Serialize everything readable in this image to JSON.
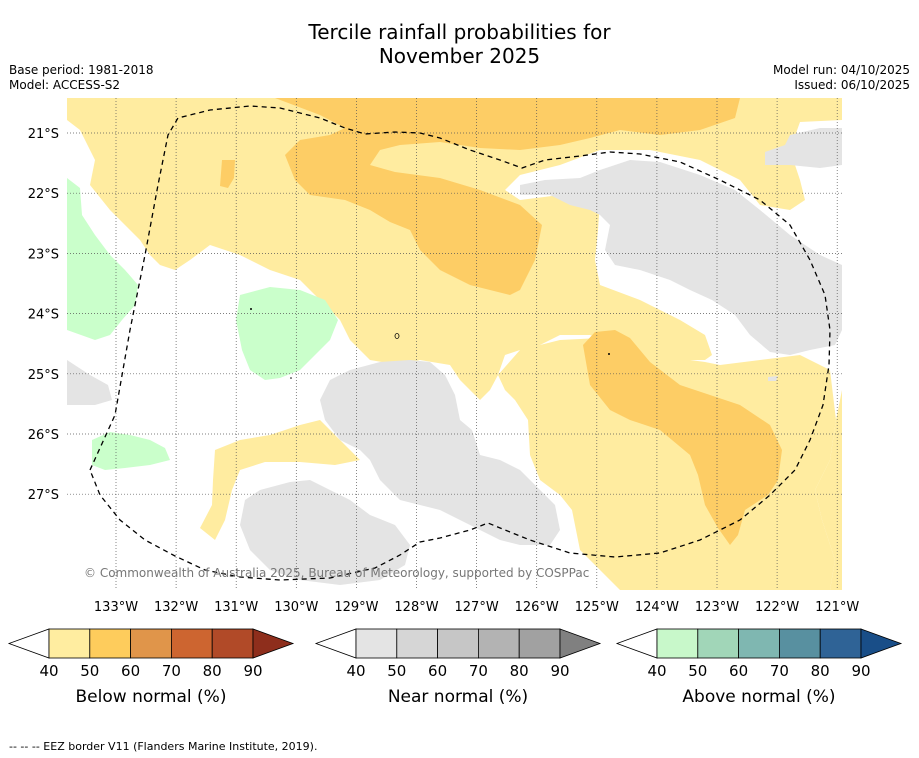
{
  "title": {
    "line1": "Tercile rainfall probabilities for",
    "line2": "November 2025"
  },
  "meta": {
    "base_period": "Base period: 1981-2018",
    "model": "Model: ACCESS-S2",
    "model_run": "Model run: 04/10/2025",
    "issued": "Issued: 06/10/2025"
  },
  "map": {
    "copyright": "© Commonwealth of Australia 2025, Bureau of Meteorology, supported by COSPPac",
    "lat_labels": [
      "21°S",
      "22°S",
      "23°S",
      "24°S",
      "25°S",
      "26°S",
      "27°S"
    ],
    "lon_labels": [
      "133°W",
      "132°W",
      "131°W",
      "130°W",
      "129°W",
      "128°W",
      "127°W",
      "126°W",
      "125°W",
      "124°W",
      "123°W",
      "122°W",
      "121°W"
    ],
    "colors": {
      "below_50": "#ffeca0",
      "below_60": "#fdcd65",
      "near_50": "#e4e4e4",
      "above_50": "#caffcb",
      "background": "#ffffff"
    }
  },
  "colorbars": [
    {
      "name": "below",
      "title": "Below normal (%)",
      "ticks": [
        "40",
        "50",
        "60",
        "70",
        "80",
        "90"
      ],
      "colors": [
        "#ffeda0",
        "#fecc5c",
        "#e0954a",
        "#cd6530",
        "#b14a28",
        "#8e2e1c"
      ]
    },
    {
      "name": "near",
      "title": "Near normal (%)",
      "ticks": [
        "40",
        "50",
        "60",
        "70",
        "80",
        "90"
      ],
      "colors": [
        "#e4e4e4",
        "#d6d6d6",
        "#c6c6c6",
        "#b3b3b3",
        "#a1a1a1",
        "#808080"
      ]
    },
    {
      "name": "above",
      "title": "Above normal (%)",
      "ticks": [
        "40",
        "50",
        "60",
        "70",
        "80",
        "90"
      ],
      "colors": [
        "#c8f8ca",
        "#a1d6b8",
        "#7fb7b1",
        "#5890a0",
        "#2f6396",
        "#194e88"
      ]
    }
  ],
  "footer": "--  --  -- EEZ border V11 (Flanders Marine Institute, 2019)."
}
